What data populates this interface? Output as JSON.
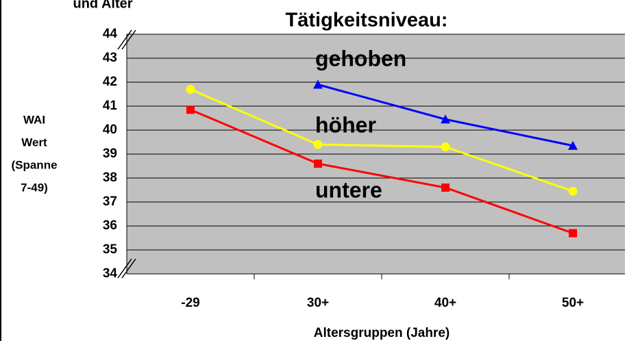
{
  "chart_data": {
    "type": "line",
    "title": "und Alter",
    "legend_title": "Tätigkeitsniveau:",
    "xlabel": "Altersgruppen (Jahre)",
    "ylabel": [
      "WAI",
      "Wert",
      "(Spanne",
      "7-49)"
    ],
    "categories": [
      "-29",
      "30+",
      "40+",
      "50+"
    ],
    "series": [
      {
        "name": "gehoben",
        "color": "#0000ff",
        "marker": "triangle",
        "values": [
          null,
          41.9,
          40.45,
          39.35
        ]
      },
      {
        "name": "höher",
        "color": "#ffff00",
        "marker": "circle",
        "values": [
          41.7,
          39.4,
          39.3,
          37.45
        ]
      },
      {
        "name": "untere",
        "color": "#ff0000",
        "marker": "square",
        "values": [
          40.85,
          38.6,
          37.6,
          35.7
        ]
      }
    ],
    "ylim": [
      34,
      44
    ],
    "yticks": [
      34,
      35,
      36,
      37,
      38,
      39,
      40,
      41,
      42,
      43,
      44
    ],
    "grid": true
  }
}
